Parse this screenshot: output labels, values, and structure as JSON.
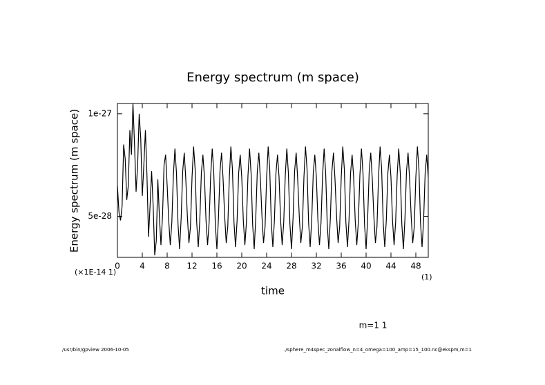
{
  "chart_data": {
    "type": "line",
    "title": "Energy spectrum (m space)",
    "y_label": "Energy spectrum (m space)",
    "x_label": "time",
    "x_note": "(×1E-14 1)",
    "x_unit": "(1)",
    "footer_left": "/usr/bin/gpview  2006-10-05",
    "footer_right": "./sphere_m4spec_zonalflow_n=4_omega=100_amp=15_100.nc@ekspm,m=1",
    "xlim": [
      0,
      50
    ],
    "xticks": [
      0,
      4,
      8,
      12,
      16,
      20,
      24,
      28,
      32,
      36,
      40,
      44,
      48
    ],
    "ylim": [
      3e-28,
      1.05e-27
    ],
    "yticks": [
      5e-28,
      1e-27
    ],
    "x": [
      0,
      0.25,
      0.5,
      0.75,
      1,
      1.25,
      1.5,
      1.75,
      2,
      2.25,
      2.5,
      2.75,
      3,
      3.25,
      3.5,
      3.75,
      4,
      4.25,
      4.5,
      4.75,
      5,
      5.25,
      5.5,
      5.75,
      6,
      6.25,
      6.5,
      6.75,
      7,
      7.25,
      7.5,
      7.75,
      8,
      8.25,
      8.5,
      8.75,
      9,
      9.25,
      9.5,
      9.75,
      10,
      10.25,
      10.5,
      10.75,
      11,
      11.25,
      11.5,
      11.75,
      12,
      12.25,
      12.5,
      12.75,
      13,
      13.25,
      13.5,
      13.75,
      14,
      14.25,
      14.5,
      14.75,
      15,
      15.25,
      15.5,
      15.75,
      16,
      16.25,
      16.5,
      16.75,
      17,
      17.25,
      17.5,
      17.75,
      18,
      18.25,
      18.5,
      18.75,
      19,
      19.25,
      19.5,
      19.75,
      20,
      20.25,
      20.5,
      20.75,
      21,
      21.25,
      21.5,
      21.75,
      22,
      22.25,
      22.5,
      22.75,
      23,
      23.25,
      23.5,
      23.75,
      24,
      24.25,
      24.5,
      24.75,
      25,
      25.25,
      25.5,
      25.75,
      26,
      26.25,
      26.5,
      26.75,
      27,
      27.25,
      27.5,
      27.75,
      28,
      28.25,
      28.5,
      28.75,
      29,
      29.25,
      29.5,
      29.75,
      30,
      30.25,
      30.5,
      30.75,
      31,
      31.25,
      31.5,
      31.75,
      32,
      32.25,
      32.5,
      32.75,
      33,
      33.25,
      33.5,
      33.75,
      34,
      34.25,
      34.5,
      34.75,
      35,
      35.25,
      35.5,
      35.75,
      36,
      36.25,
      36.5,
      36.75,
      37,
      37.25,
      37.5,
      37.75,
      38,
      38.25,
      38.5,
      38.75,
      39,
      39.25,
      39.5,
      39.75,
      40,
      40.25,
      40.5,
      40.75,
      41,
      41.25,
      41.5,
      41.75,
      42,
      42.25,
      42.5,
      42.75,
      43,
      43.25,
      43.5,
      43.75,
      44,
      44.25,
      44.5,
      44.75,
      45,
      45.25,
      45.5,
      45.75,
      46,
      46.25,
      46.5,
      46.75,
      47,
      47.25,
      47.5,
      47.75,
      48,
      48.25,
      48.5,
      48.75,
      49,
      49.25,
      49.5,
      49.75,
      50
    ],
    "series": [
      {
        "name": "m=1 1",
        "color": "#000000",
        "values": [
          6.5e-28,
          5.2e-28,
          4.8e-28,
          5.5e-28,
          8.5e-28,
          7.8e-28,
          5.8e-28,
          6.5e-28,
          9.2e-28,
          8e-28,
          1.05e-27,
          8.5e-28,
          6.2e-28,
          7.5e-28,
          1e-27,
          8.8e-28,
          6e-28,
          7.5e-28,
          9.2e-28,
          7e-28,
          4e-28,
          5.5e-28,
          7.2e-28,
          5.5e-28,
          3.1e-28,
          3.8e-28,
          6.8e-28,
          5e-28,
          3.6e-28,
          5e-28,
          7.5e-28,
          8e-28,
          6.5e-28,
          4.8e-28,
          3.6e-28,
          4.7e-28,
          7e-28,
          8.3e-28,
          7.1e-28,
          4.6e-28,
          3.4e-28,
          4.9e-28,
          7.2e-28,
          8.1e-28,
          6.8e-28,
          5e-28,
          3.7e-28,
          4.5e-28,
          6.9e-28,
          8.4e-28,
          7.3e-28,
          4.7e-28,
          3.5e-28,
          4.8e-28,
          7.1e-28,
          8e-28,
          6.9e-28,
          4.8e-28,
          3.6e-28,
          4.7e-28,
          7e-28,
          8.3e-28,
          7.1e-28,
          4.6e-28,
          3.4e-28,
          4.9e-28,
          7.2e-28,
          8.1e-28,
          6.8e-28,
          5e-28,
          3.7e-28,
          4.5e-28,
          6.9e-28,
          8.4e-28,
          7.3e-28,
          4.7e-28,
          3.5e-28,
          4.8e-28,
          7.1e-28,
          8e-28,
          6.9e-28,
          4.8e-28,
          3.6e-28,
          4.7e-28,
          7e-28,
          8.3e-28,
          7.1e-28,
          4.6e-28,
          3.4e-28,
          4.9e-28,
          7.2e-28,
          8.1e-28,
          6.8e-28,
          5e-28,
          3.7e-28,
          4.5e-28,
          6.9e-28,
          8.4e-28,
          7.3e-28,
          4.7e-28,
          3.5e-28,
          4.8e-28,
          7.1e-28,
          8e-28,
          6.9e-28,
          4.8e-28,
          3.6e-28,
          4.7e-28,
          7e-28,
          8.3e-28,
          7.1e-28,
          4.6e-28,
          3.4e-28,
          4.9e-28,
          7.2e-28,
          8.1e-28,
          6.8e-28,
          5e-28,
          3.7e-28,
          4.5e-28,
          6.9e-28,
          8.4e-28,
          7.3e-28,
          4.7e-28,
          3.5e-28,
          4.8e-28,
          7.1e-28,
          8e-28,
          6.9e-28,
          4.8e-28,
          3.6e-28,
          4.7e-28,
          7e-28,
          8.3e-28,
          7.1e-28,
          4.6e-28,
          3.4e-28,
          4.9e-28,
          7.2e-28,
          8.1e-28,
          6.8e-28,
          5e-28,
          3.7e-28,
          4.5e-28,
          6.9e-28,
          8.4e-28,
          7.3e-28,
          4.7e-28,
          3.5e-28,
          4.8e-28,
          7.1e-28,
          8e-28,
          6.9e-28,
          4.8e-28,
          3.6e-28,
          4.7e-28,
          7e-28,
          8.3e-28,
          7.1e-28,
          4.6e-28,
          3.4e-28,
          4.9e-28,
          7.2e-28,
          8.1e-28,
          6.8e-28,
          5e-28,
          3.7e-28,
          4.5e-28,
          6.9e-28,
          8.4e-28,
          7.3e-28,
          4.7e-28,
          3.5e-28,
          4.8e-28,
          7.1e-28,
          8e-28,
          6.9e-28,
          4.8e-28,
          3.6e-28,
          4.7e-28,
          7e-28,
          8.3e-28,
          7.1e-28,
          4.6e-28,
          3.4e-28,
          4.9e-28,
          7.2e-28,
          8.1e-28,
          6.8e-28,
          5e-28,
          3.7e-28,
          4.5e-28,
          6.9e-28,
          8.4e-28,
          7.3e-28,
          4.7e-28,
          3.5e-28,
          4.8e-28,
          7.1e-28,
          8e-28,
          6.9e-28
        ]
      }
    ]
  }
}
